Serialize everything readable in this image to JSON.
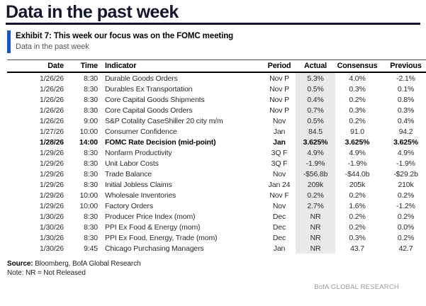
{
  "page": {
    "title": "Data in the past week",
    "exhibit": {
      "label": "Exhibit 7: This week our focus was on the FOMC meeting",
      "subtitle": "Data in the past week"
    },
    "footer": {
      "source_label": "Source:",
      "source_text": " Bloomberg, BofA Global Research",
      "note": "Note: NR = Not Released",
      "brand": "BofA GLOBAL RESEARCH"
    },
    "colors": {
      "title_navy": "#15152f",
      "exhibit_bar_blue": "#1757c2",
      "actual_column_shade": "#e9e9e9",
      "subtitle_gray": "#55565a",
      "brand_gray": "#97999b"
    }
  },
  "chart_data": {
    "type": "table",
    "columns": [
      "Date",
      "Time",
      "Indicator",
      "Period",
      "Actual",
      "Consensus",
      "Previous"
    ],
    "shaded_column": "Actual",
    "rows": [
      {
        "date": "1/26/26",
        "time": "8:30",
        "indicator": "Durable Goods Orders",
        "period": "Nov P",
        "actual": "5.3%",
        "consensus": "4.0%",
        "previous": "-2.1%",
        "bold": false
      },
      {
        "date": "1/26/26",
        "time": "8:30",
        "indicator": "Durables Ex Transportation",
        "period": "Nov P",
        "actual": "0.5%",
        "consensus": "0.3%",
        "previous": "0.1%",
        "bold": false
      },
      {
        "date": "1/26/26",
        "time": "8:30",
        "indicator": "Core Capital Goods Shipments",
        "period": "Nov P",
        "actual": "0.4%",
        "consensus": "0.2%",
        "previous": "0.8%",
        "bold": false
      },
      {
        "date": "1/26/26",
        "time": "8:30",
        "indicator": "Core Capital Goods Orders",
        "period": "Nov P",
        "actual": "0.7%",
        "consensus": "0.3%",
        "previous": "0.3%",
        "bold": false
      },
      {
        "date": "1/26/26",
        "time": "9:00",
        "indicator": "S&P Cotality CaseShiller 20 city m/m",
        "period": "Nov",
        "actual": "0.5%",
        "consensus": "0.2%",
        "previous": "0.4%",
        "bold": false
      },
      {
        "date": "1/27/26",
        "time": "10:00",
        "indicator": "Consumer Confidence",
        "period": "Jan",
        "actual": "84.5",
        "consensus": "91.0",
        "previous": "94.2",
        "bold": false
      },
      {
        "date": "1/28/26",
        "time": "14:00",
        "indicator": "FOMC Rate Decision (mid-point)",
        "period": "Jan",
        "actual": "3.625%",
        "consensus": "3.625%",
        "previous": "3.625%",
        "bold": true
      },
      {
        "date": "1/29/26",
        "time": "8:30",
        "indicator": "Nonfarm Productivity",
        "period": "3Q F",
        "actual": "4.9%",
        "consensus": "4.9%",
        "previous": "4.9%",
        "bold": false
      },
      {
        "date": "1/29/26",
        "time": "8:30",
        "indicator": "Unit Labor Costs",
        "period": "3Q F",
        "actual": "-1.9%",
        "consensus": "-1.9%",
        "previous": "-1.9%",
        "bold": false
      },
      {
        "date": "1/29/26",
        "time": "8:30",
        "indicator": "Trade Balance",
        "period": "Nov",
        "actual": "-$56.8b",
        "consensus": "-$44.0b",
        "previous": "-$29.2b",
        "bold": false
      },
      {
        "date": "1/29/26",
        "time": "8:30",
        "indicator": "Initial Jobless Claims",
        "period": "Jan 24",
        "actual": "209k",
        "consensus": "205k",
        "previous": "210k",
        "bold": false
      },
      {
        "date": "1/29/26",
        "time": "10:00",
        "indicator": "Wholesale Inventories",
        "period": "Nov F",
        "actual": "0.2%",
        "consensus": "0.2%",
        "previous": "0.2%",
        "bold": false
      },
      {
        "date": "1/29/26",
        "time": "10:00",
        "indicator": "Factory Orders",
        "period": "Nov",
        "actual": "2.7%",
        "consensus": "1.6%",
        "previous": "-1.2%",
        "bold": false
      },
      {
        "date": "1/30/26",
        "time": "8:30",
        "indicator": "Producer Price Index (mom)",
        "period": "Dec",
        "actual": "NR",
        "consensus": "0.2%",
        "previous": "0.2%",
        "bold": false
      },
      {
        "date": "1/30/26",
        "time": "8:30",
        "indicator": "PPI Ex Food & Energy (mom)",
        "period": "Dec",
        "actual": "NR",
        "consensus": "0.2%",
        "previous": "0.0%",
        "bold": false
      },
      {
        "date": "1/30/26",
        "time": "8:30",
        "indicator": "PPI Ex Food, Energy, Trade (mom)",
        "period": "Dec",
        "actual": "NR",
        "consensus": "0.3%",
        "previous": "0.2%",
        "bold": false
      },
      {
        "date": "1/30/26",
        "time": "9:45",
        "indicator": "Chicago Purchasing Managers",
        "period": "Jan",
        "actual": "NR",
        "consensus": "43.7",
        "previous": "42.7",
        "bold": false
      }
    ]
  }
}
